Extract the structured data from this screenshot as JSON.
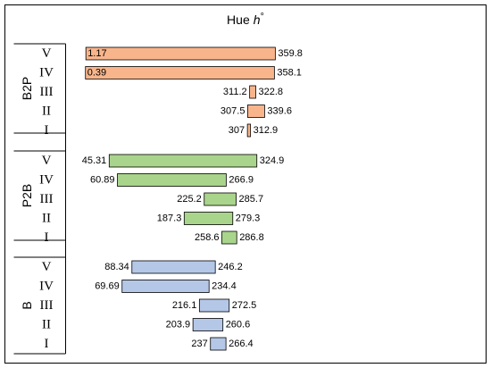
{
  "chart_data": {
    "type": "bar",
    "title": "Hue",
    "title_symbol": "h",
    "title_unit": "°",
    "groups": [
      {
        "label": "B2P",
        "color": "#f8b58c",
        "bars": [
          {
            "level": "V",
            "min": 1.17,
            "max": 359.8,
            "min_label": "1.17",
            "max_label": "359.8"
          },
          {
            "level": "IV",
            "min": 0.39,
            "max": 358.1,
            "min_label": "0.39",
            "max_label": "358.1"
          },
          {
            "level": "III",
            "min": 311.2,
            "max": 322.8,
            "min_label": "311.2",
            "max_label": "322.8"
          },
          {
            "level": "II",
            "min": 307.5,
            "max": 339.6,
            "min_label": "307.5",
            "max_label": "339.6"
          },
          {
            "level": "I",
            "min": 307,
            "max": 312.9,
            "min_label": "307",
            "max_label": "312.9"
          }
        ]
      },
      {
        "label": "P2B",
        "color": "#a9d48c",
        "bars": [
          {
            "level": "V",
            "min": 45.31,
            "max": 324.9,
            "min_label": "45.31",
            "max_label": "324.9"
          },
          {
            "level": "IV",
            "min": 60.89,
            "max": 266.9,
            "min_label": "60.89",
            "max_label": "266.9"
          },
          {
            "level": "III",
            "min": 225.2,
            "max": 285.7,
            "min_label": "225.2",
            "max_label": "285.7"
          },
          {
            "level": "II",
            "min": 187.3,
            "max": 279.3,
            "min_label": "187.3",
            "max_label": "279.3"
          },
          {
            "level": "I",
            "min": 258.6,
            "max": 286.8,
            "min_label": "258.6",
            "max_label": "286.8"
          }
        ]
      },
      {
        "label": "B",
        "color": "#b4c7e7",
        "bars": [
          {
            "level": "V",
            "min": 88.34,
            "max": 246.2,
            "min_label": "88.34",
            "max_label": "246.2"
          },
          {
            "level": "IV",
            "min": 69.69,
            "max": 234.4,
            "min_label": "69.69",
            "max_label": "234.4"
          },
          {
            "level": "III",
            "min": 216.1,
            "max": 272.5,
            "min_label": "216.1",
            "max_label": "272.5"
          },
          {
            "level": "II",
            "min": 203.9,
            "max": 260.6,
            "min_label": "203.9",
            "max_label": "260.6"
          },
          {
            "level": "I",
            "min": 237,
            "max": 266.4,
            "min_label": "237",
            "max_label": "266.4"
          }
        ]
      }
    ],
    "xlim": [
      0,
      360
    ],
    "grid": false,
    "legend": "none"
  }
}
